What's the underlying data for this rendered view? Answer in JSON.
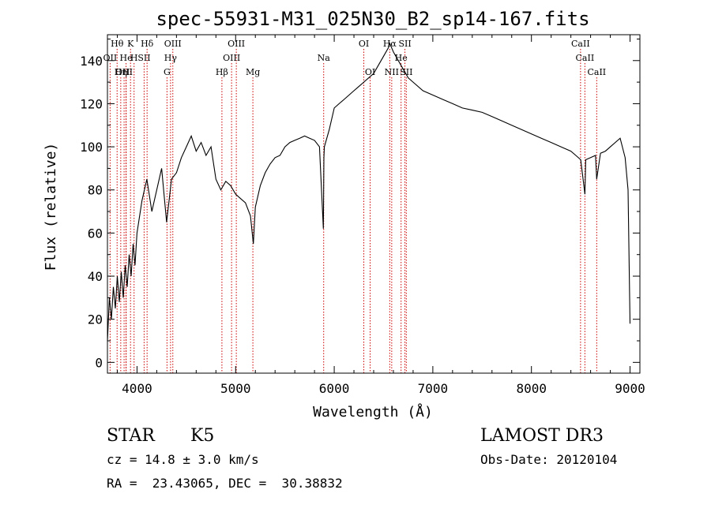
{
  "chart_data": {
    "type": "line",
    "title": "spec-55931-M31_025N30_B2_sp14-167.fits",
    "xlabel": "Wavelength (Å)",
    "ylabel": "Flux (relative)",
    "xlim": [
      3700,
      9100
    ],
    "ylim": [
      -5,
      152
    ],
    "x_ticks": [
      4000,
      5000,
      6000,
      7000,
      8000,
      9000
    ],
    "y_ticks": [
      0,
      20,
      40,
      60,
      80,
      100,
      120,
      140
    ],
    "grid": false,
    "series": [
      {
        "name": "flux",
        "x": [
          3700,
          3720,
          3740,
          3760,
          3780,
          3800,
          3820,
          3840,
          3860,
          3880,
          3900,
          3920,
          3940,
          3960,
          3980,
          4000,
          4050,
          4100,
          4150,
          4200,
          4250,
          4300,
          4350,
          4400,
          4450,
          4500,
          4550,
          4600,
          4650,
          4700,
          4750,
          4800,
          4850,
          4900,
          4950,
          5000,
          5050,
          5100,
          5150,
          5180,
          5200,
          5250,
          5300,
          5350,
          5400,
          5450,
          5500,
          5550,
          5600,
          5650,
          5700,
          5750,
          5800,
          5850,
          5890,
          5895,
          5900,
          5950,
          6000,
          6050,
          6100,
          6150,
          6200,
          6250,
          6300,
          6350,
          6400,
          6450,
          6500,
          6550,
          6563,
          6600,
          6650,
          6700,
          6750,
          6800,
          6900,
          7000,
          7100,
          7200,
          7300,
          7400,
          7500,
          7600,
          7700,
          7800,
          7900,
          8000,
          8100,
          8200,
          8300,
          8400,
          8450,
          8500,
          8542,
          8550,
          8600,
          8650,
          8662,
          8700,
          8750,
          8800,
          8850,
          8900,
          8950,
          8980,
          9000
        ],
        "values": [
          10,
          30,
          20,
          35,
          25,
          40,
          28,
          42,
          30,
          45,
          35,
          50,
          40,
          55,
          45,
          60,
          75,
          85,
          70,
          80,
          90,
          65,
          85,
          88,
          95,
          100,
          105,
          98,
          102,
          96,
          100,
          85,
          80,
          84,
          82,
          78,
          76,
          74,
          68,
          55,
          72,
          82,
          88,
          92,
          95,
          96,
          100,
          102,
          103,
          104,
          105,
          104,
          103,
          100,
          62,
          95,
          100,
          108,
          118,
          120,
          122,
          124,
          126,
          128,
          130,
          132,
          134,
          138,
          142,
          146,
          148,
          144,
          140,
          136,
          132,
          130,
          126,
          124,
          122,
          120,
          118,
          117,
          116,
          114,
          112,
          110,
          108,
          106,
          104,
          102,
          100,
          98,
          96,
          94,
          78,
          94,
          95,
          96,
          85,
          97,
          98,
          100,
          102,
          104,
          95,
          80,
          18
        ]
      }
    ],
    "lines": [
      {
        "label": "Hθ",
        "x": 3798,
        "row": 0
      },
      {
        "label": "K",
        "x": 3934,
        "row": 0
      },
      {
        "label": "Hδ",
        "x": 4102,
        "row": 0
      },
      {
        "label": "OIII",
        "x": 4363,
        "row": 0
      },
      {
        "label": "OIII",
        "x": 5007,
        "row": 0
      },
      {
        "label": "OI",
        "x": 6300,
        "row": 0
      },
      {
        "label": "Hα",
        "x": 6563,
        "row": 0
      },
      {
        "label": "SII",
        "x": 6717,
        "row": 0
      },
      {
        "label": "CaII",
        "x": 8498,
        "row": 0
      },
      {
        "label": "OII",
        "x": 3727,
        "row": 1
      },
      {
        "label": "He",
        "x": 3889,
        "row": 1
      },
      {
        "label": "H",
        "x": 3970,
        "row": 1
      },
      {
        "label": "SII",
        "x": 4072,
        "row": 1
      },
      {
        "label": "Hγ",
        "x": 4340,
        "row": 1
      },
      {
        "label": "OIII",
        "x": 4959,
        "row": 1
      },
      {
        "label": "Na",
        "x": 5893,
        "row": 1
      },
      {
        "label": "He",
        "x": 6678,
        "row": 1
      },
      {
        "label": "CaII",
        "x": 8542,
        "row": 1
      },
      {
        "label": "OIII",
        "x": 3869,
        "row": 2
      },
      {
        "label": "Hη",
        "x": 3835,
        "row": 2
      },
      {
        "label": "H",
        "x": 3889,
        "row": 2
      },
      {
        "label": "G",
        "x": 4304,
        "row": 2
      },
      {
        "label": "Hβ",
        "x": 4861,
        "row": 2
      },
      {
        "label": "Mg",
        "x": 5175,
        "row": 2
      },
      {
        "label": "OI",
        "x": 6364,
        "row": 2
      },
      {
        "label": "NII",
        "x": 6583,
        "row": 2
      },
      {
        "label": "SII",
        "x": 6731,
        "row": 2
      },
      {
        "label": "CaII",
        "x": 8662,
        "row": 2
      }
    ]
  },
  "info": {
    "class": "STAR",
    "subclass": "K5",
    "survey": "LAMOST DR3",
    "cz": "cz = 14.8 ± 3.0 km/s",
    "obs_date": "Obs-Date: 20120104",
    "radec": "RA =  23.43065, DEC =  30.38832"
  },
  "colors": {
    "line_markers": "#cc0000",
    "spectrum": "#000000"
  }
}
